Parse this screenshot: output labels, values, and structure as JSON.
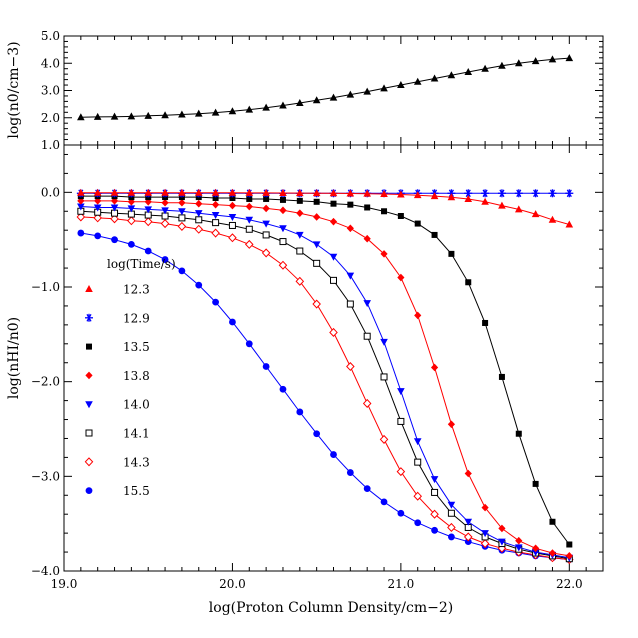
{
  "chart_data": [
    {
      "type": "line",
      "panel": "top",
      "ylabel": "log(n0/cm−3)",
      "xlim": [
        19.0,
        22.2
      ],
      "ylim": [
        1.0,
        5.0
      ],
      "yticks": [
        "1.0",
        "2.0",
        "3.0",
        "4.0",
        "5.0"
      ],
      "grid": false,
      "series": [
        {
          "marker": "triangle",
          "color": "#000000",
          "x": [
            19.1,
            19.2,
            19.3,
            19.4,
            19.5,
            19.6,
            19.7,
            19.8,
            19.9,
            20.0,
            20.1,
            20.2,
            20.3,
            20.4,
            20.5,
            20.6,
            20.7,
            20.8,
            20.9,
            21.0,
            21.1,
            21.2,
            21.3,
            21.4,
            21.5,
            21.6,
            21.7,
            21.8,
            21.9,
            22.0
          ],
          "y": [
            2.02,
            2.03,
            2.04,
            2.05,
            2.07,
            2.09,
            2.12,
            2.15,
            2.19,
            2.24,
            2.3,
            2.37,
            2.45,
            2.54,
            2.64,
            2.74,
            2.85,
            2.96,
            3.08,
            3.2,
            3.32,
            3.44,
            3.56,
            3.68,
            3.8,
            3.91,
            4.0,
            4.08,
            4.14,
            4.19
          ]
        }
      ]
    },
    {
      "type": "line",
      "panel": "bottom",
      "xlabel": "log(Proton Column Density/cm−2)",
      "ylabel": "log(nHI/n0)",
      "xlim": [
        19.0,
        22.2
      ],
      "ylim": [
        -4.0,
        0.5
      ],
      "xticks": [
        "19.0",
        "20.0",
        "21.0",
        "22.0"
      ],
      "yticks": [
        "−4.0",
        "−3.0",
        "−2.0",
        "−1.0",
        "0.0"
      ],
      "grid": false,
      "legend_title": "log(Time/s)",
      "legend_position": "left-center",
      "series": [
        {
          "name": "12.3",
          "marker": "triangle",
          "color": "#ff0000",
          "x": [
            19.1,
            19.2,
            19.3,
            19.4,
            19.5,
            19.6,
            19.7,
            19.8,
            19.9,
            20.0,
            20.1,
            20.2,
            20.3,
            20.4,
            20.5,
            20.6,
            20.7,
            20.8,
            20.9,
            21.0,
            21.1,
            21.2,
            21.3,
            21.4,
            21.5,
            21.6,
            21.7,
            21.8,
            21.9,
            22.0
          ],
          "y": [
            -0.004,
            -0.004,
            -0.004,
            -0.004,
            -0.004,
            -0.004,
            -0.005,
            -0.005,
            -0.005,
            -0.005,
            -0.006,
            -0.006,
            -0.007,
            -0.008,
            -0.009,
            -0.01,
            -0.012,
            -0.014,
            -0.018,
            -0.023,
            -0.03,
            -0.04,
            -0.052,
            -0.07,
            -0.1,
            -0.14,
            -0.18,
            -0.23,
            -0.29,
            -0.34
          ]
        },
        {
          "name": "12.9",
          "marker": "asterisk",
          "color": "#0000ff",
          "x": [
            19.1,
            19.2,
            19.3,
            19.4,
            19.5,
            19.6,
            19.7,
            19.8,
            19.9,
            20.0,
            20.1,
            20.2,
            20.3,
            20.4,
            20.5,
            20.6,
            20.7,
            20.8,
            20.9,
            21.0,
            21.1,
            21.2,
            21.3,
            21.4,
            21.5,
            21.6,
            21.7,
            21.8,
            21.9,
            22.0
          ],
          "y": [
            -0.01,
            -0.01,
            -0.01,
            -0.01,
            -0.01,
            -0.01,
            -0.01,
            -0.01,
            -0.01,
            -0.01,
            -0.01,
            -0.01,
            -0.01,
            -0.01,
            -0.01,
            -0.01,
            -0.01,
            -0.01,
            -0.01,
            -0.01,
            -0.01,
            -0.01,
            -0.01,
            -0.01,
            -0.01,
            -0.01,
            -0.01,
            -0.01,
            -0.01,
            -0.01
          ]
        },
        {
          "name": "13.5",
          "marker": "square",
          "color": "#000000",
          "x": [
            19.1,
            19.2,
            19.3,
            19.4,
            19.5,
            19.6,
            19.7,
            19.8,
            19.9,
            20.0,
            20.1,
            20.2,
            20.3,
            20.4,
            20.5,
            20.6,
            20.7,
            20.8,
            20.9,
            21.0,
            21.1,
            21.2,
            21.3,
            21.4,
            21.5,
            21.6,
            21.7,
            21.8,
            21.9,
            22.0
          ],
          "y": [
            -0.04,
            -0.04,
            -0.04,
            -0.05,
            -0.05,
            -0.05,
            -0.05,
            -0.05,
            -0.06,
            -0.06,
            -0.07,
            -0.07,
            -0.08,
            -0.09,
            -0.1,
            -0.12,
            -0.13,
            -0.16,
            -0.2,
            -0.25,
            -0.33,
            -0.45,
            -0.65,
            -0.95,
            -1.38,
            -1.95,
            -2.55,
            -3.08,
            -3.48,
            -3.72
          ]
        },
        {
          "name": "13.8",
          "marker": "diamond",
          "color": "#ff0000",
          "x": [
            19.1,
            19.2,
            19.3,
            19.4,
            19.5,
            19.6,
            19.7,
            19.8,
            19.9,
            20.0,
            20.1,
            20.2,
            20.3,
            20.4,
            20.5,
            20.6,
            20.7,
            20.8,
            20.9,
            21.0,
            21.1,
            21.2,
            21.3,
            21.4,
            21.5,
            21.6,
            21.7,
            21.8,
            21.9,
            22.0
          ],
          "y": [
            -0.09,
            -0.09,
            -0.09,
            -0.1,
            -0.1,
            -0.11,
            -0.11,
            -0.12,
            -0.13,
            -0.14,
            -0.15,
            -0.17,
            -0.19,
            -0.22,
            -0.26,
            -0.31,
            -0.38,
            -0.49,
            -0.65,
            -0.9,
            -1.3,
            -1.85,
            -2.45,
            -2.97,
            -3.33,
            -3.55,
            -3.68,
            -3.76,
            -3.81,
            -3.84
          ]
        },
        {
          "name": "14.0",
          "marker": "triangle-down",
          "color": "#0000ff",
          "x": [
            19.1,
            19.2,
            19.3,
            19.4,
            19.5,
            19.6,
            19.7,
            19.8,
            19.9,
            20.0,
            20.1,
            20.2,
            20.3,
            20.4,
            20.5,
            20.6,
            20.7,
            20.8,
            20.9,
            21.0,
            21.1,
            21.2,
            21.3,
            21.4,
            21.5,
            21.6,
            21.7,
            21.8,
            21.9,
            22.0
          ],
          "y": [
            -0.15,
            -0.16,
            -0.16,
            -0.17,
            -0.18,
            -0.19,
            -0.2,
            -0.22,
            -0.24,
            -0.26,
            -0.29,
            -0.33,
            -0.38,
            -0.45,
            -0.55,
            -0.68,
            -0.88,
            -1.17,
            -1.58,
            -2.1,
            -2.63,
            -3.03,
            -3.3,
            -3.48,
            -3.6,
            -3.69,
            -3.75,
            -3.8,
            -3.83,
            -3.86
          ]
        },
        {
          "name": "14.1",
          "marker": "square-open",
          "color": "#000000",
          "x": [
            19.1,
            19.2,
            19.3,
            19.4,
            19.5,
            19.6,
            19.7,
            19.8,
            19.9,
            20.0,
            20.1,
            20.2,
            20.3,
            20.4,
            20.5,
            20.6,
            20.7,
            20.8,
            20.9,
            21.0,
            21.1,
            21.2,
            21.3,
            21.4,
            21.5,
            21.6,
            21.7,
            21.8,
            21.9,
            22.0
          ],
          "y": [
            -0.2,
            -0.21,
            -0.22,
            -0.23,
            -0.24,
            -0.25,
            -0.27,
            -0.29,
            -0.32,
            -0.35,
            -0.39,
            -0.45,
            -0.52,
            -0.62,
            -0.75,
            -0.93,
            -1.18,
            -1.52,
            -1.95,
            -2.42,
            -2.85,
            -3.17,
            -3.39,
            -3.54,
            -3.64,
            -3.71,
            -3.77,
            -3.81,
            -3.84,
            -3.87
          ]
        },
        {
          "name": "14.3",
          "marker": "diamond-open",
          "color": "#ff0000",
          "x": [
            19.1,
            19.2,
            19.3,
            19.4,
            19.5,
            19.6,
            19.7,
            19.8,
            19.9,
            20.0,
            20.1,
            20.2,
            20.3,
            20.4,
            20.5,
            20.6,
            20.7,
            20.8,
            20.9,
            21.0,
            21.1,
            21.2,
            21.3,
            21.4,
            21.5,
            21.6,
            21.7,
            21.8,
            21.9,
            22.0
          ],
          "y": [
            -0.26,
            -0.27,
            -0.28,
            -0.3,
            -0.31,
            -0.33,
            -0.36,
            -0.39,
            -0.43,
            -0.48,
            -0.55,
            -0.64,
            -0.77,
            -0.94,
            -1.18,
            -1.48,
            -1.84,
            -2.23,
            -2.61,
            -2.95,
            -3.21,
            -3.4,
            -3.54,
            -3.64,
            -3.71,
            -3.76,
            -3.8,
            -3.83,
            -3.86,
            -3.88
          ]
        },
        {
          "name": "15.5",
          "marker": "circle",
          "color": "#0000ff",
          "x": [
            19.1,
            19.2,
            19.3,
            19.4,
            19.5,
            19.6,
            19.7,
            19.8,
            19.9,
            20.0,
            20.1,
            20.2,
            20.3,
            20.4,
            20.5,
            20.6,
            20.7,
            20.8,
            20.9,
            21.0,
            21.1,
            21.2,
            21.3,
            21.4,
            21.5,
            21.6,
            21.7,
            21.8,
            21.9,
            22.0
          ],
          "y": [
            -0.43,
            -0.46,
            -0.5,
            -0.55,
            -0.62,
            -0.71,
            -0.83,
            -0.98,
            -1.16,
            -1.37,
            -1.6,
            -1.84,
            -2.08,
            -2.32,
            -2.55,
            -2.77,
            -2.96,
            -3.13,
            -3.27,
            -3.39,
            -3.49,
            -3.57,
            -3.64,
            -3.69,
            -3.74,
            -3.78,
            -3.81,
            -3.84,
            -3.86,
            -3.88
          ]
        }
      ]
    }
  ]
}
